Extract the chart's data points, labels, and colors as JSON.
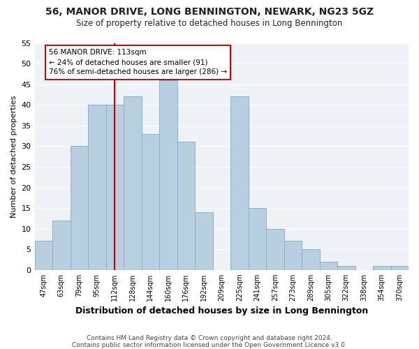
{
  "title": "56, MANOR DRIVE, LONG BENNINGTON, NEWARK, NG23 5GZ",
  "subtitle": "Size of property relative to detached houses in Long Bennington",
  "xlabel": "Distribution of detached houses by size in Long Bennington",
  "ylabel": "Number of detached properties",
  "bar_color": "#b8cfe0",
  "bar_edge_color": "#8aafc8",
  "categories": [
    "47sqm",
    "63sqm",
    "79sqm",
    "95sqm",
    "112sqm",
    "128sqm",
    "144sqm",
    "160sqm",
    "176sqm",
    "192sqm",
    "209sqm",
    "225sqm",
    "241sqm",
    "257sqm",
    "273sqm",
    "289sqm",
    "305sqm",
    "322sqm",
    "338sqm",
    "354sqm",
    "370sqm"
  ],
  "values": [
    7,
    12,
    30,
    40,
    40,
    42,
    33,
    46,
    31,
    14,
    0,
    42,
    15,
    10,
    7,
    5,
    2,
    1,
    0,
    1,
    1
  ],
  "ylim": [
    0,
    55
  ],
  "yticks": [
    0,
    5,
    10,
    15,
    20,
    25,
    30,
    35,
    40,
    45,
    50,
    55
  ],
  "vline_x_index": 4,
  "vline_color": "#cc0000",
  "annotation_title": "56 MANOR DRIVE: 113sqm",
  "annotation_line1": "← 24% of detached houses are smaller (91)",
  "annotation_line2": "76% of semi-detached houses are larger (286) →",
  "annotation_box_facecolor": "#ffffff",
  "annotation_box_edgecolor": "#cc0000",
  "footer1": "Contains HM Land Registry data © Crown copyright and database right 2024.",
  "footer2": "Contains public sector information licensed under the Open Government Licence v3.0.",
  "bg_color": "#eef2f7",
  "fig_bg": "#ffffff"
}
